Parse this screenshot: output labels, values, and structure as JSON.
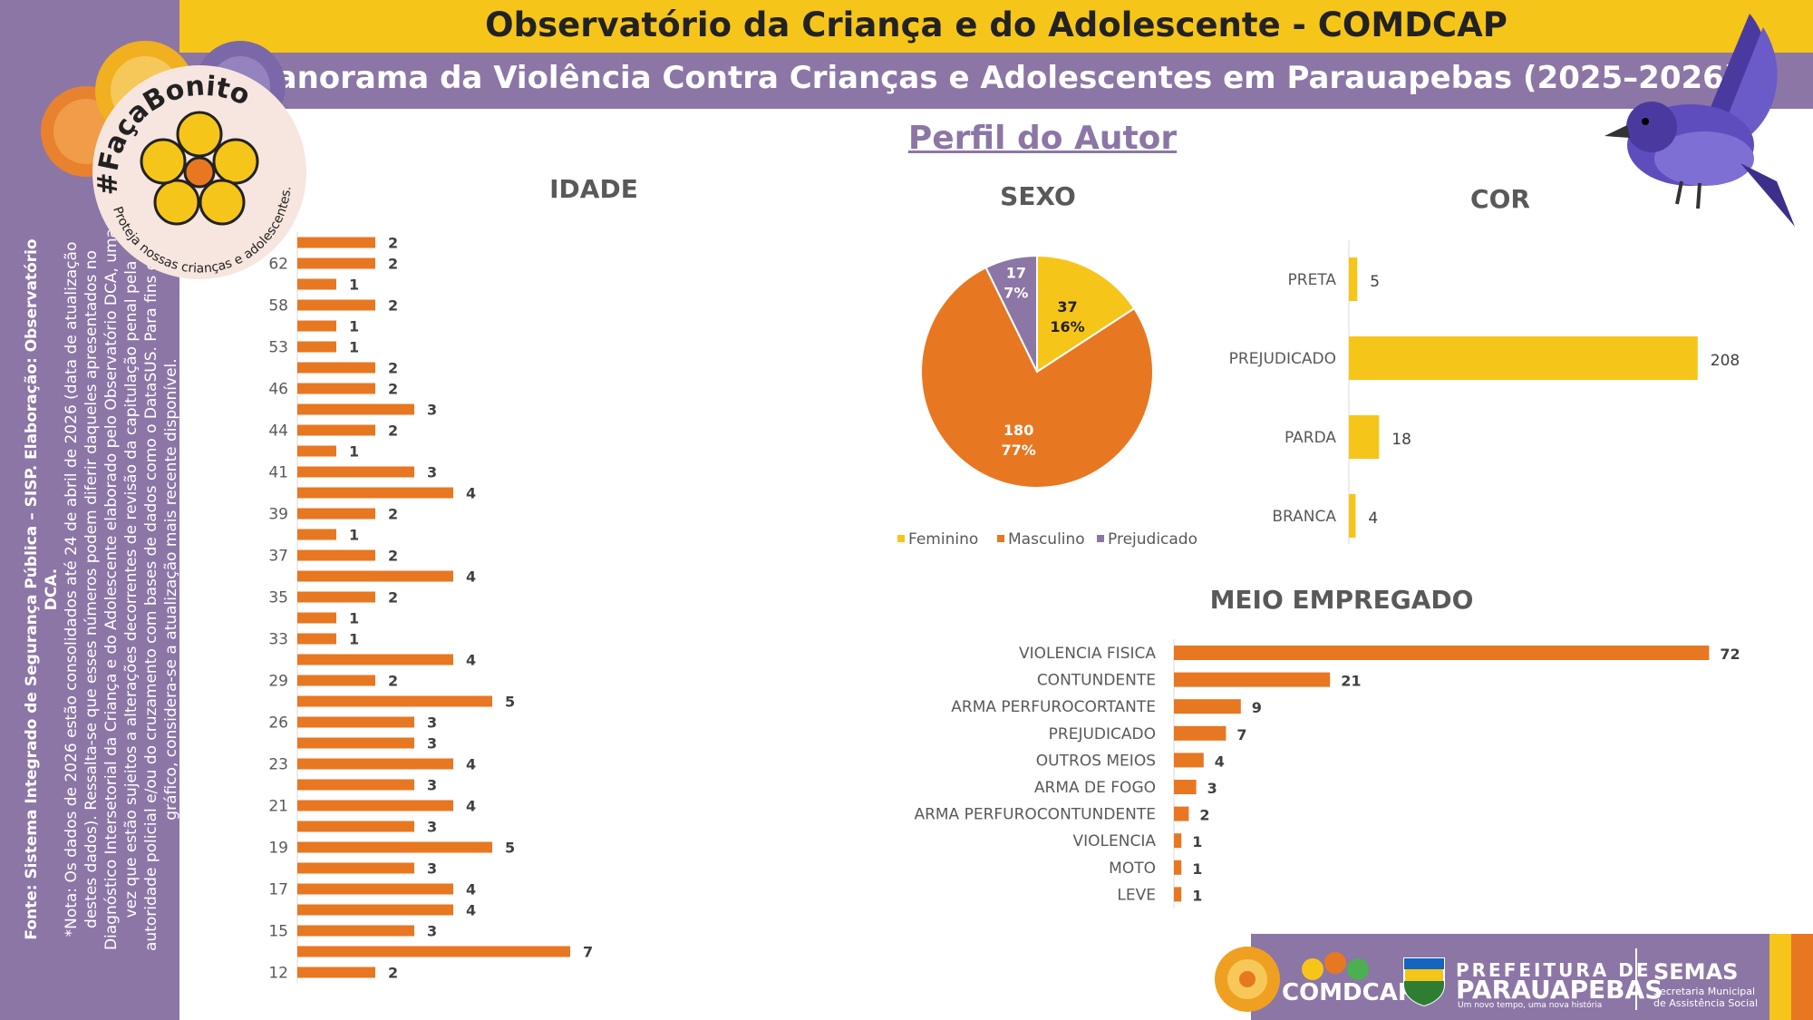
{
  "header": {
    "title": "Observatório da Criança e do Adolescente - COMDCAP",
    "subtitle": "Panorama da Violência Contra Crianças e Adolescentes em Parauapebas (2025–2026)",
    "section_title": "Perfil do Autor"
  },
  "sidebar": {
    "source": "Fonte: Sistema Integrado de Segurança Pública – SISP. Elaboração: Observatório DCA.",
    "note": "*Nota: Os dados de 2026 estão consolidados até 24 de abril de 2026 (data de atualização destes dados). Ressalta-se que esses números podem diferir daqueles apresentados no Diagnóstico Intersetorial da Criança e do Adolescente elaborado pelo Observatório DCA, uma vez que estão sujeitos a alterações decorrentes de revisão da capitulação penal pela autoridade policial e/ou do cruzamento com bases de dados como o DataSUS. Para fins deste gráfico, considera-se a atualização mais recente disponível."
  },
  "badge": {
    "hashtag": "#FaçaBonito",
    "tagline": "Proteja nossas crianças e adolescentes."
  },
  "footer": {
    "comdcap": "COMDCAP",
    "prefeitura_line1": "PREFEITURA DE",
    "prefeitura_line2": "PARAUAPEBAS",
    "prefeitura_slogan": "Um novo tempo, uma nova história",
    "semas": "SEMAS",
    "semas_line1": "Secretaria Municipal",
    "semas_line2": "de Assistência Social"
  },
  "colors": {
    "orange": "#e87722",
    "yellow": "#f6c51a",
    "purple": "#8c76a6",
    "text_dark": "#222222",
    "axis_text": "#595959"
  },
  "chart_data": [
    {
      "type": "bar",
      "orientation": "horizontal",
      "title": "IDADE",
      "category_labels": [
        "62",
        "58",
        "53",
        "46",
        "44",
        "41",
        "39",
        "37",
        "35",
        "33",
        "29",
        "26",
        "23",
        "21",
        "19",
        "17",
        "15",
        "12"
      ],
      "values": [
        2,
        2,
        1,
        2,
        1,
        1,
        2,
        2,
        3,
        2,
        1,
        3,
        4,
        2,
        1,
        2,
        4,
        2,
        1,
        1,
        4,
        2,
        5,
        3,
        3,
        4,
        3,
        4,
        3,
        5,
        3,
        4,
        4,
        3,
        7,
        2
      ],
      "value_labels": [
        "2",
        "2",
        "1",
        "2",
        "1",
        "1",
        "2",
        "2",
        "3",
        "2",
        "1",
        "3",
        "4",
        "2",
        "1",
        "2",
        "4",
        "2",
        "1",
        "1",
        "4",
        "2",
        "5",
        "3",
        "3",
        "4",
        "3",
        "4",
        "3",
        "5",
        "3",
        "4",
        "4",
        "3",
        "7",
        "2"
      ]
    },
    {
      "type": "pie",
      "title": "SEXO",
      "categories": [
        "Feminino",
        "Masculino",
        "Prejudicado"
      ],
      "values": [
        37,
        180,
        17
      ],
      "percent_labels": [
        "16%",
        "77%",
        "7%"
      ],
      "value_labels": [
        "37",
        "180",
        "17"
      ],
      "colors": [
        "#f6c51a",
        "#e87722",
        "#8c76a6"
      ],
      "legend": "bottom"
    },
    {
      "type": "bar",
      "orientation": "horizontal",
      "title": "COR",
      "categories": [
        "PRETA",
        "PREJUDICADO",
        "PARDA",
        "BRANCA"
      ],
      "values": [
        5,
        208,
        18,
        4
      ],
      "value_labels": [
        "5",
        "208",
        "18",
        "4"
      ],
      "color": "#f6c51a"
    },
    {
      "type": "bar",
      "orientation": "horizontal",
      "title": "MEIO EMPREGADO",
      "categories": [
        "VIOLENCIA FISICA",
        "CONTUNDENTE",
        "ARMA PERFUROCORTANTE",
        "PREJUDICADO",
        "OUTROS MEIOS",
        "ARMA DE FOGO",
        "ARMA PERFUROCONTUNDENTE",
        "VIOLENCIA",
        "MOTO",
        "LEVE"
      ],
      "values": [
        72,
        21,
        9,
        7,
        4,
        3,
        2,
        1,
        1,
        1
      ],
      "value_labels": [
        "72",
        "21",
        "9",
        "7",
        "4",
        "3",
        "2",
        "1",
        "1",
        "1"
      ],
      "color": "#e87722"
    }
  ]
}
